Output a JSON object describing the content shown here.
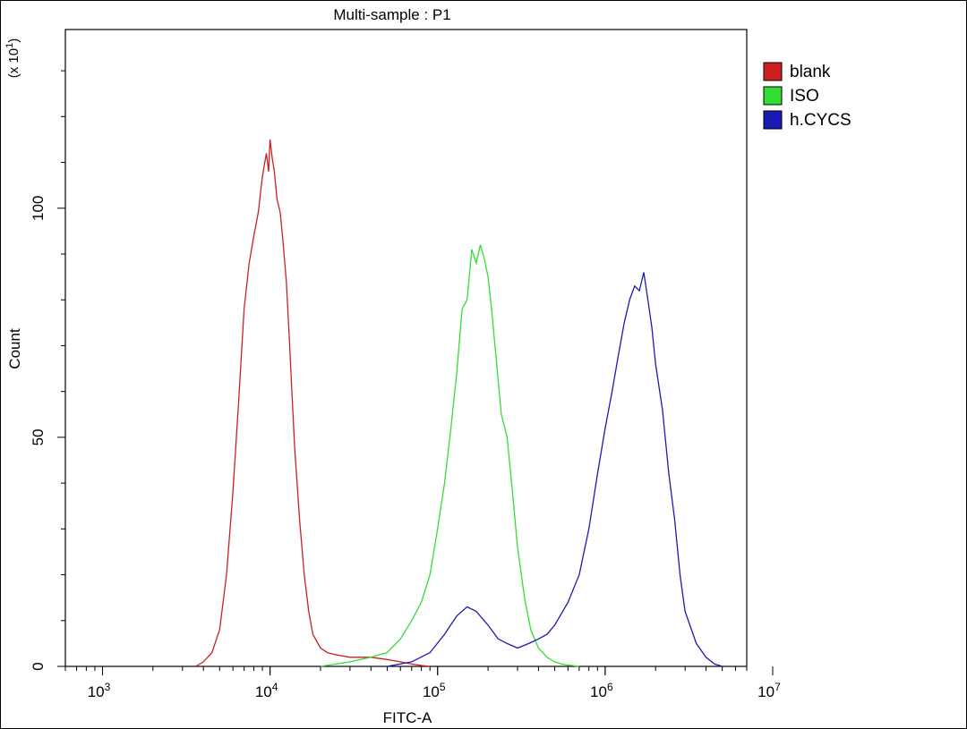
{
  "chart_data": {
    "type": "line",
    "title": "Multi-sample : P1",
    "xlabel": "FITC-A",
    "ylabel": "Count",
    "y_multiplier_label": "(x 10",
    "y_multiplier_exp": "1",
    "y_multiplier_close": ")",
    "x_scale": "log",
    "xlim": [
      600,
      7000000
    ],
    "ylim": [
      0,
      139
    ],
    "x_ticks": [
      {
        "value": 1000,
        "base": "10",
        "exp": "3"
      },
      {
        "value": 10000,
        "base": "10",
        "exp": "4"
      },
      {
        "value": 100000,
        "base": "10",
        "exp": "5"
      },
      {
        "value": 1000000,
        "base": "10",
        "exp": "6"
      },
      {
        "value": 10000000,
        "base": "10",
        "exp": "7"
      }
    ],
    "y_ticks": [
      {
        "value": 0,
        "label": "0"
      },
      {
        "value": 50,
        "label": "50"
      },
      {
        "value": 100,
        "label": "100"
      }
    ],
    "grid": false,
    "legend_position": "top-right",
    "series": [
      {
        "name": "blank",
        "color": "#cc2020",
        "x": [
          3600,
          4000,
          4500,
          5000,
          5500,
          6000,
          6500,
          7000,
          7500,
          8000,
          8500,
          9000,
          9500,
          9800,
          10000,
          10300,
          10600,
          11000,
          11500,
          12000,
          12500,
          13000,
          13500,
          14000,
          15000,
          16000,
          17000,
          18000,
          20000,
          22000,
          25000,
          30000,
          40000,
          50000,
          60000,
          70000,
          80000,
          90000
        ],
        "y": [
          0,
          1,
          3,
          8,
          20,
          38,
          58,
          78,
          88,
          94,
          99,
          107,
          112,
          108,
          115,
          111,
          108,
          102,
          99,
          92,
          84,
          72,
          60,
          48,
          32,
          20,
          12,
          7,
          4,
          3,
          2.5,
          2,
          2,
          1.5,
          1,
          0.5,
          0.2,
          0
        ]
      },
      {
        "name": "ISO",
        "color": "#33dd33",
        "x": [
          20000,
          30000,
          40000,
          50000,
          60000,
          70000,
          80000,
          90000,
          100000,
          110000,
          120000,
          130000,
          140000,
          150000,
          160000,
          170000,
          180000,
          190000,
          200000,
          210000,
          220000,
          240000,
          260000,
          280000,
          300000,
          330000,
          360000,
          400000,
          450000,
          500000,
          550000,
          600000,
          700000
        ],
        "y": [
          0,
          1,
          2,
          3,
          6,
          10,
          14,
          20,
          30,
          40,
          52,
          64,
          78,
          80,
          91,
          88,
          92,
          89,
          85,
          78,
          70,
          55,
          50,
          38,
          26,
          15,
          8,
          4,
          2,
          1,
          0.5,
          0.3,
          0
        ]
      },
      {
        "name": "h.CYCS",
        "color": "#1a1ab4",
        "x": [
          50000,
          70000,
          90000,
          110000,
          130000,
          150000,
          170000,
          200000,
          230000,
          260000,
          300000,
          350000,
          400000,
          450000,
          500000,
          600000,
          700000,
          800000,
          900000,
          1000000,
          1100000,
          1200000,
          1300000,
          1400000,
          1500000,
          1600000,
          1700000,
          1800000,
          1900000,
          2000000,
          2200000,
          2400000,
          2600000,
          2800000,
          3000000,
          3500000,
          4000000,
          4500000,
          5000000
        ],
        "y": [
          0,
          1,
          3,
          7,
          11,
          13,
          12,
          9,
          6,
          5,
          4,
          5,
          6,
          7,
          9,
          14,
          20,
          30,
          42,
          52,
          60,
          68,
          75,
          80,
          83,
          82,
          86,
          80,
          74,
          66,
          56,
          42,
          32,
          20,
          12,
          5,
          2,
          0.5,
          0
        ]
      }
    ]
  }
}
